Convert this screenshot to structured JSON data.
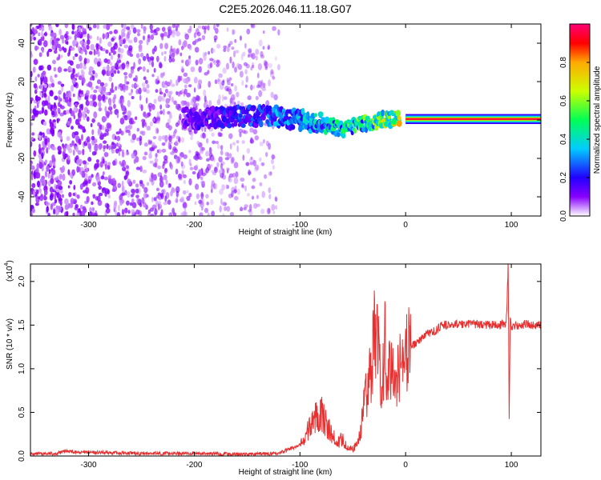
{
  "figure": {
    "title": "C2E5.2026.046.11.18.G07"
  },
  "chart_data": [
    {
      "type": "heatmap",
      "title": "C2E5.2026.046.11.18.G07",
      "xlabel": "Height of straight line (km)",
      "ylabel": "Frequency (Hz)",
      "xlim": [
        -355,
        128
      ],
      "ylim": [
        -50,
        50
      ],
      "x_ticks": [
        -300,
        -200,
        -100,
        0,
        100
      ],
      "x_tick_labels": [
        "-300",
        "-200",
        "-100",
        "0",
        "100"
      ],
      "y_ticks": [
        -40,
        -20,
        0,
        20,
        40
      ],
      "y_tick_labels": [
        "-40",
        "-20",
        "0",
        "20",
        "40"
      ],
      "colorbar": {
        "label": "Normalized spectral amplitude",
        "range": [
          0,
          1
        ],
        "ticks": [
          0.0,
          0.2,
          0.4,
          0.6,
          0.8
        ],
        "tick_labels": [
          "0.0",
          "0.2",
          "0.4",
          "0.6",
          "0.8"
        ],
        "colormap": [
          "#ffffff",
          "#8800ff",
          "#2200ff",
          "#00ccff",
          "#00ff55",
          "#ccff00",
          "#ffaa00",
          "#ff0000",
          "#ff0077"
        ]
      },
      "description_points": {
        "ridge_center_hz": [
          [
            -200,
            1.0
          ],
          [
            -150,
            2.0
          ],
          [
            -120,
            2.0
          ],
          [
            -100,
            0.0
          ],
          [
            -80,
            -2.0
          ],
          [
            -60,
            -5.0
          ],
          [
            -40,
            -2.0
          ],
          [
            -20,
            0.5
          ],
          [
            0,
            0.8
          ],
          [
            50,
            0.5
          ],
          [
            100,
            0.5
          ],
          [
            128,
            0.5
          ]
        ],
        "ridge_peak_amplitude": [
          [
            -200,
            0.15
          ],
          [
            -150,
            0.25
          ],
          [
            -100,
            0.35
          ],
          [
            -60,
            0.45
          ],
          [
            -20,
            0.6
          ],
          [
            0,
            0.85
          ],
          [
            50,
            0.95
          ],
          [
            100,
            0.95
          ],
          [
            128,
            0.95
          ]
        ],
        "noise_region_km": [
          -355,
          -100
        ]
      }
    },
    {
      "type": "line",
      "xlabel": "Height of straight line (km)",
      "ylabel": "SNR (10 * v/v)",
      "y_multiplier_label": "(x10",
      "y_multiplier_exp": "4",
      "xlim": [
        -355,
        128
      ],
      "ylim": [
        0,
        2.2
      ],
      "x_ticks": [
        -300,
        -200,
        -100,
        0,
        100
      ],
      "x_tick_labels": [
        "-300",
        "-200",
        "-100",
        "0",
        "100"
      ],
      "y_ticks": [
        0.0,
        0.5,
        1.0,
        1.5,
        2.0
      ],
      "y_tick_labels": [
        "0.0",
        "0.5",
        "1.0",
        "1.5",
        "2.0"
      ],
      "color": "#e83030",
      "series": [
        {
          "x": [
            -355,
            -330,
            -320,
            -310,
            -300,
            -250,
            -200,
            -150,
            -120,
            -110,
            -100,
            -95,
            -90,
            -85,
            -80,
            -75,
            -70,
            -65,
            -60,
            -55,
            -50,
            -45,
            -40,
            -35,
            -30,
            -28,
            -25,
            -22,
            -20,
            -18,
            -15,
            -12,
            -10,
            -8,
            -5,
            -2,
            0,
            5,
            10,
            15,
            20,
            25,
            30,
            35,
            40,
            50,
            60,
            70,
            80,
            90,
            95,
            96,
            97,
            98,
            99,
            100,
            105,
            110,
            115,
            120,
            128
          ],
          "y": [
            0.02,
            0.03,
            0.06,
            0.04,
            0.04,
            0.03,
            0.03,
            0.02,
            0.03,
            0.08,
            0.12,
            0.22,
            0.35,
            0.45,
            0.52,
            0.35,
            0.25,
            0.15,
            0.2,
            0.1,
            0.08,
            0.15,
            0.5,
            0.9,
            1.3,
            1.55,
            1.0,
            0.7,
            1.45,
            1.1,
            0.95,
            1.2,
            0.85,
            1.0,
            1.05,
            1.1,
            1.15,
            1.25,
            1.3,
            1.35,
            1.4,
            1.42,
            1.45,
            1.5,
            1.5,
            1.51,
            1.52,
            1.51,
            1.5,
            1.5,
            1.52,
            1.75,
            2.2,
            0.45,
            1.6,
            1.48,
            1.5,
            1.49,
            1.52,
            1.5,
            1.5
          ]
        }
      ]
    }
  ]
}
